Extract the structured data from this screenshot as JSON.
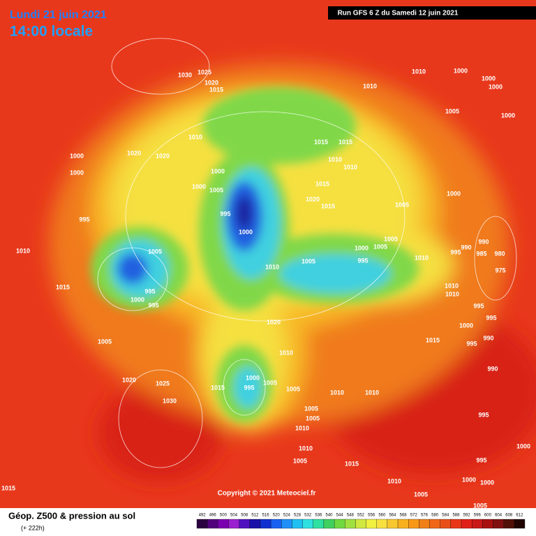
{
  "header": {
    "date": "Lundi 21 juin 2021",
    "time": "14:00 locale",
    "run": "Run GFS 6 Z du Samedi 12 juin 2021"
  },
  "map": {
    "isobar_labels": [
      1030,
      1025,
      1020,
      1015,
      1010,
      1000,
      1000,
      1000,
      1010,
      1005,
      1000,
      1010,
      1015,
      1015,
      1020,
      1020,
      1000,
      1000,
      1010,
      1010,
      1000,
      1000,
      1005,
      1015,
      1000,
      1020,
      1015,
      1005,
      995,
      995,
      1000,
      1005,
      1005,
      1000,
      990,
      990,
      995,
      985,
      980,
      975,
      1010,
      1005,
      1005,
      995,
      1010,
      1010,
      1015,
      995,
      1000,
      995,
      1010,
      1010,
      995,
      1000,
      995,
      1020,
      990,
      995,
      1005,
      1015,
      1010,
      990,
      1020,
      1025,
      1030,
      1015,
      1000,
      995,
      1005,
      1005,
      1010,
      1010,
      1005,
      995,
      1005,
      1010,
      1000,
      1010,
      1005,
      1015,
      995,
      1010,
      1000,
      1000,
      1015,
      1005,
      1005
    ],
    "copyright": "Copyright © 2021 Meteociel.fr"
  },
  "footer": {
    "title": "Géop. Z500 & pression au sol",
    "lead": "(+ 222h)",
    "scale": {
      "labels": [
        492,
        496,
        500,
        504,
        508,
        512,
        516,
        520,
        524,
        528,
        532,
        536,
        540,
        544,
        548,
        552,
        556,
        560,
        564,
        568,
        572,
        576,
        580,
        584,
        588,
        592,
        596,
        600,
        604,
        608,
        612
      ],
      "colors": [
        "#2a0040",
        "#50007a",
        "#7a00b0",
        "#9a20d0",
        "#5010c0",
        "#1a10a8",
        "#1030d0",
        "#1860f0",
        "#2090f8",
        "#20c0f0",
        "#30e0e0",
        "#30e0a0",
        "#40d060",
        "#70d840",
        "#a0e040",
        "#d0e840",
        "#f0f040",
        "#f8e040",
        "#f8c830",
        "#f8b020",
        "#f89818",
        "#f08018",
        "#f06818",
        "#e85018",
        "#e83818",
        "#e02018",
        "#c81818",
        "#a81010",
        "#801010",
        "#501008",
        "#200404"
      ]
    }
  }
}
